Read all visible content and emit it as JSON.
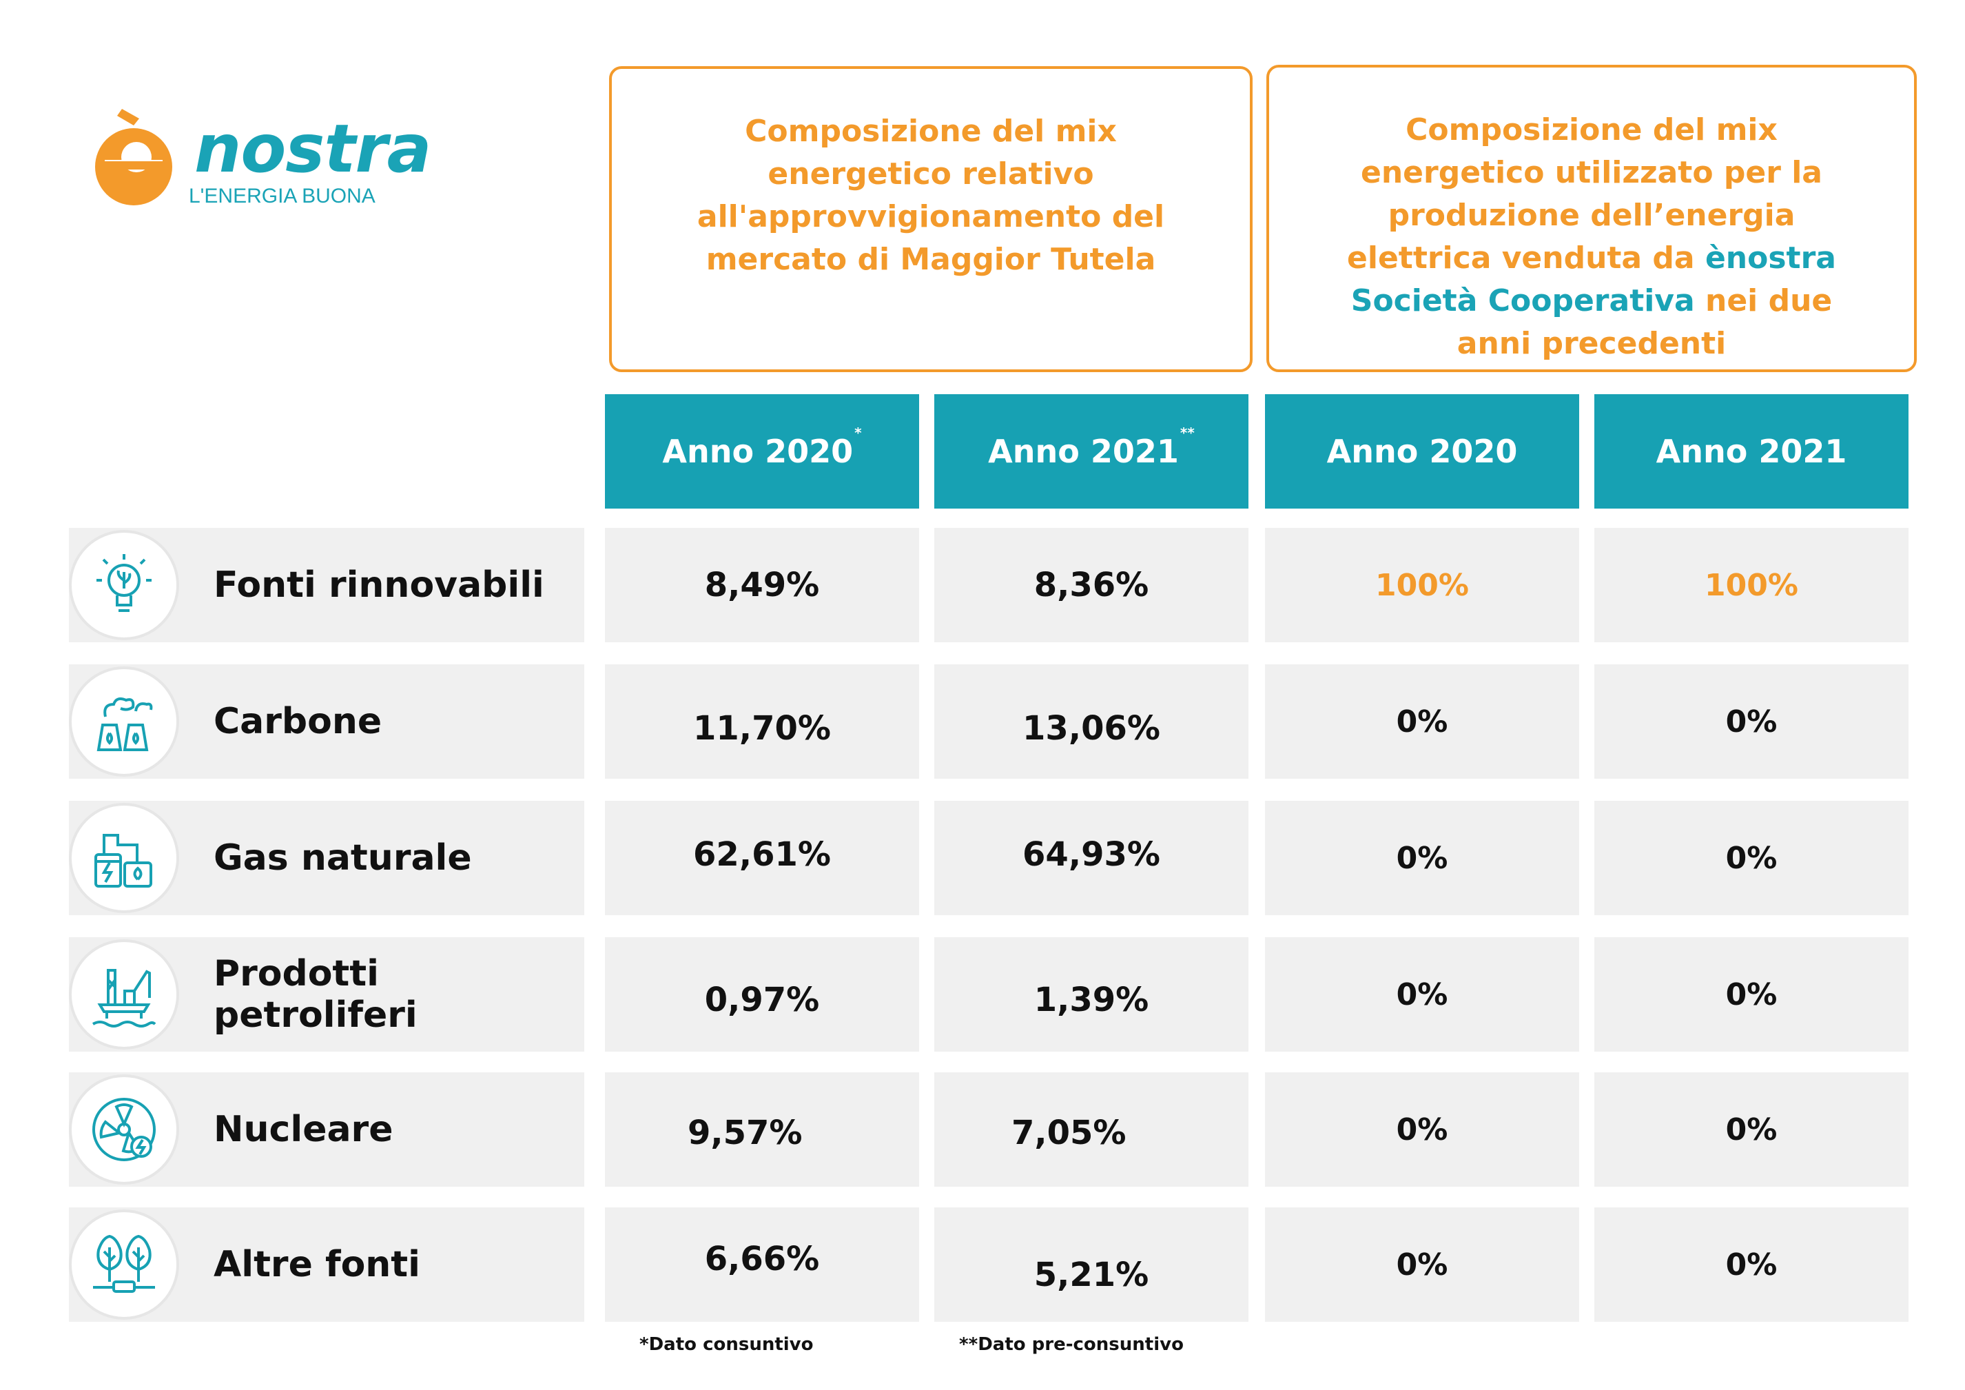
{
  "logo": {
    "brand": "nostra",
    "tagline": "L'ENERGIA BUONA"
  },
  "headers": {
    "box1": "Composizione del mix energetico relativo all'approvvigionamento del mercato di Maggior Tutela",
    "box2_part1": "Composizione del mix energetico utilizzato per la produzione dell’energia elettrica venduta da",
    "box2_teal": "ènostra Società Cooperativa",
    "box2_part2": "nei due anni precedenti"
  },
  "years": [
    {
      "label": "Anno 2020",
      "mark": "*"
    },
    {
      "label": "Anno 2021",
      "mark": "**"
    },
    {
      "label": "Anno 2020",
      "mark": ""
    },
    {
      "label": "Anno 2021",
      "mark": ""
    }
  ],
  "rows": [
    {
      "label": "Fonti rinnovabili",
      "icon": "lightbulb-leaf-icon",
      "values": [
        "8,49%",
        "8,36%",
        "100%",
        "100%"
      ]
    },
    {
      "label": "Carbone",
      "icon": "power-plant-icon",
      "values": [
        "11,70%",
        "13,06%",
        "0%",
        "0%"
      ]
    },
    {
      "label": "Gas naturale",
      "icon": "gas-plant-icon",
      "values": [
        "62,61%",
        "64,93%",
        "0%",
        "0%"
      ]
    },
    {
      "label": "Prodotti petroliferi",
      "icon": "oil-rig-icon",
      "values": [
        "0,97%",
        "1,39%",
        "0%",
        "0%"
      ]
    },
    {
      "label": "Nucleare",
      "icon": "nuclear-fan-icon",
      "values": [
        "9,57%",
        "7,05%",
        "0%",
        "0%"
      ]
    },
    {
      "label": "Altre fonti",
      "icon": "trees-plug-icon",
      "values": [
        "6,66%",
        "5,21%",
        "0%",
        "0%"
      ]
    }
  ],
  "notes": {
    "note1": "*Dato consuntivo",
    "note2": "**Dato pre-consuntivo"
  },
  "colors": {
    "orange": "#f39a2b",
    "teal": "#17a1b3",
    "row_bg": "#f0f0f0"
  }
}
